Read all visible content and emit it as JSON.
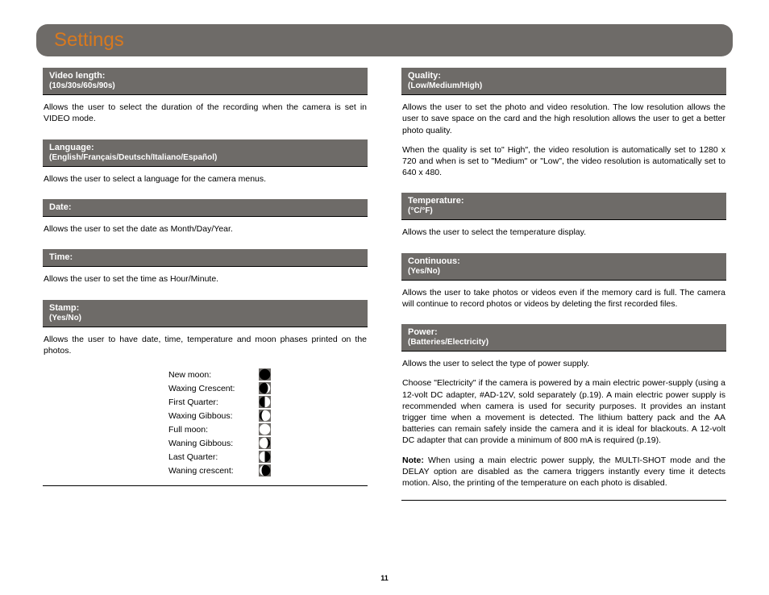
{
  "title": "Settings",
  "page_number": "11",
  "colors": {
    "header_bg": "#6e6b68",
    "title_color": "#d8791f",
    "header_text": "#ffffff",
    "body_text": "#000000"
  },
  "left_column": [
    {
      "title": "Video length:",
      "subtitle": "(10s/30s/60s/90s)",
      "body": [
        "Allows the user to select the duration of the recording when the camera is set in VIDEO mode."
      ]
    },
    {
      "title": "Language:",
      "subtitle": "(English/Français/Deutsch/Italiano/Español)",
      "body": [
        "Allows the user to select a language for the camera menus."
      ]
    },
    {
      "title": "Date:",
      "subtitle": "",
      "body": [
        "Allows the user to set the date as Month/Day/Year."
      ]
    },
    {
      "title": "Time:",
      "subtitle": "",
      "body": [
        "Allows the user to set the time as Hour/Minute."
      ]
    },
    {
      "title": "Stamp:",
      "subtitle": "(Yes/No)",
      "body": [
        "Allows the user to have date, time, temperature and moon phases printed on the photos."
      ],
      "moon_phases": [
        {
          "label": "New moon:",
          "phase": "new"
        },
        {
          "label": "Waxing Crescent:",
          "phase": "waxing-crescent"
        },
        {
          "label": "First Quarter:",
          "phase": "first-quarter"
        },
        {
          "label": "Waxing Gibbous:",
          "phase": "waxing-gibbous"
        },
        {
          "label": "Full moon:",
          "phase": "full"
        },
        {
          "label": "Waning Gibbous:",
          "phase": "waning-gibbous"
        },
        {
          "label": "Last Quarter:",
          "phase": "last-quarter"
        },
        {
          "label": "Waning crescent:",
          "phase": "waning-crescent"
        }
      ]
    }
  ],
  "right_column": [
    {
      "title": "Quality:",
      "subtitle": "(Low/Medium/High)",
      "body": [
        "Allows the user to set the photo and video resolution. The low resolution allows the user to save space on the card and the high resolution allows the user to get a better photo quality.",
        "When the quality is set to\" High\", the video resolution is automatically set to 1280 x 720 and when is set to \"Medium\" or \"Low\", the video resolution is automatically set to 640 x 480."
      ]
    },
    {
      "title": "Temperature:",
      "subtitle": "(°C/°F)",
      "body": [
        "Allows the user to select the temperature display."
      ]
    },
    {
      "title": "Continuous:",
      "subtitle": "(Yes/No)",
      "body": [
        "Allows the user to take photos or videos even if the memory card is full. The camera will continue to record photos or videos by deleting the first recorded files."
      ]
    },
    {
      "title": "Power:",
      "subtitle": "(Batteries/Electricity)",
      "body": [
        "Allows the user to select the type of power supply.",
        "Choose \"Electricity\" if the camera is powered by a main electric power-supply (using a 12-volt DC adapter, #AD-12V, sold separately (p.19). A main electric power supply is recommended when camera is used for security purposes. It provides an instant trigger time when a movement is detected. The lithium battery pack and the AA batteries can remain safely inside the camera and it is ideal for blackouts. A 12-volt DC adapter that can provide a minimum of 800 mA is required (p.19)."
      ],
      "note_label": "Note:",
      "note_body": " When using a main electric power supply, the MULTI-SHOT mode and the DELAY option are disabled as the camera triggers instantly every time it detects motion. Also, the printing of the temperature on each photo is disabled."
    }
  ],
  "moon_svg": {
    "bg": "#6e6b68",
    "light": "#ffffff",
    "dark": "#000000"
  }
}
